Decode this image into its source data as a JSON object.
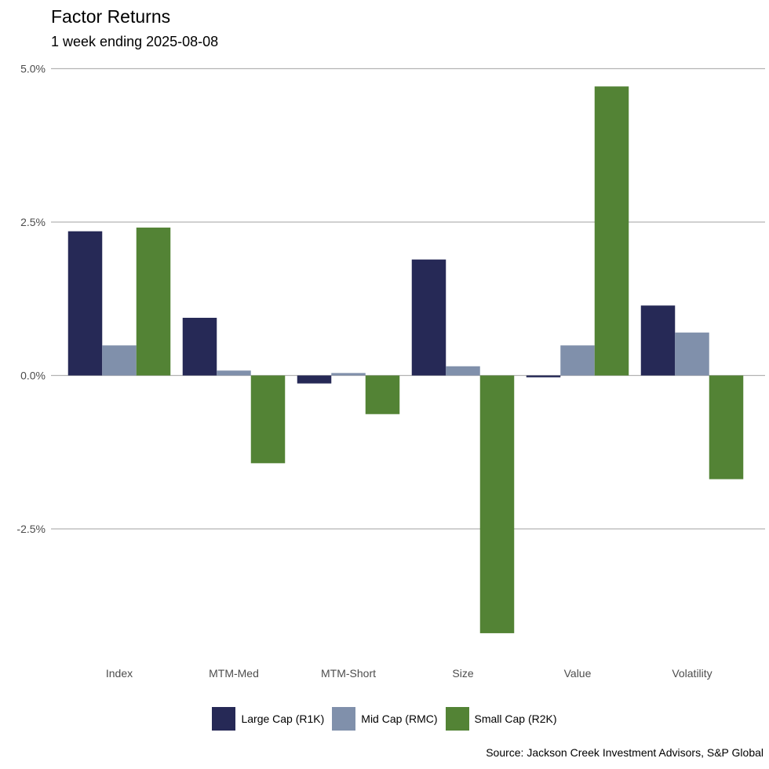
{
  "chart_data": {
    "type": "bar",
    "title": "Factor Returns",
    "subtitle": "1 week ending 2025-08-08",
    "caption": "Source: Jackson Creek Investment Advisors, S&P Global",
    "xlabel": "",
    "ylabel": "",
    "ylim": [
      -4.4,
      5.0
    ],
    "y_ticks": [
      -2.5,
      0.0,
      2.5,
      5.0
    ],
    "y_tick_labels": [
      "-2.5%",
      "0.0%",
      "2.5%",
      "5.0%"
    ],
    "grid": "horizontal",
    "legend_position": "bottom",
    "categories": [
      "Index",
      "MTM-Med",
      "MTM-Short",
      "Size",
      "Value",
      "Volatility"
    ],
    "series": [
      {
        "name": "Large Cap (R1K)",
        "color": "#262956",
        "values": [
          2.35,
          0.94,
          -0.13,
          1.89,
          -0.03,
          1.14
        ]
      },
      {
        "name": "Mid Cap (RMC)",
        "color": "#8090ab",
        "values": [
          0.49,
          0.08,
          0.04,
          0.15,
          0.49,
          0.7
        ]
      },
      {
        "name": "Small Cap (R2K)",
        "color": "#538335",
        "values": [
          2.41,
          -1.43,
          -0.63,
          -4.2,
          4.71,
          -1.69
        ]
      }
    ]
  }
}
